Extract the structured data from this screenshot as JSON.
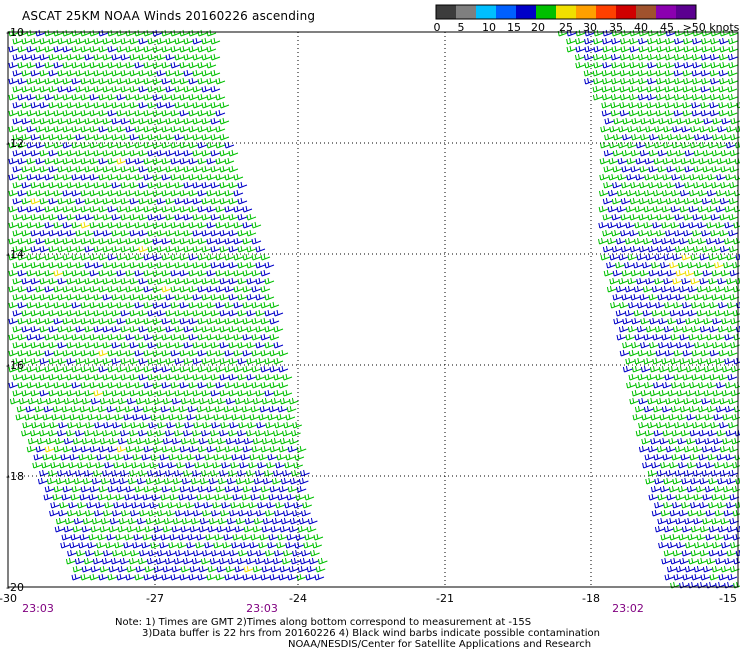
{
  "title": "ASCAT 25KM NOAA Winds 20160226 ascending",
  "legend": {
    "units": ">50 knots",
    "ticks": [
      "0",
      "5",
      "10",
      "15",
      "20",
      "25",
      "30",
      "35",
      "40",
      "45"
    ],
    "colors": [
      "#3c3c3c",
      "#7f7f7f",
      "#00bfff",
      "#0060ff",
      "#0000c8",
      "#00c000",
      "#f0e000",
      "#ffa000",
      "#ff4000",
      "#d00000",
      "#a0522d",
      "#8b00b0",
      "#5b0090"
    ]
  },
  "axes": {
    "x_ticks": [
      "-30",
      "-27",
      "-24",
      "-21",
      "-18",
      "-15"
    ],
    "y_ticks": [
      "-10",
      "-12",
      "-14",
      "-16",
      "-18",
      "-20"
    ]
  },
  "time_labels": [
    "23:03",
    "23:03",
    "23:02"
  ],
  "notes": [
    "Note: 1) Times are GMT 2)Times along bottom correspond to measurement at -15S",
    "3)Data buffer is 22 hrs from 20160226 4) Black wind barbs indicate possible contamination",
    "NOAA/NESDIS/Center for Satellite Applications and Research"
  ],
  "colors": {
    "green": "#00c000",
    "blue": "#0000c8",
    "yellow": "#f0e000",
    "grid": "#000000",
    "time_label": "#800080"
  }
}
